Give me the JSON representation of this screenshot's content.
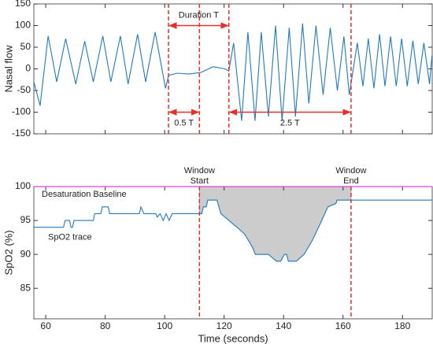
{
  "chart_data": [
    {
      "type": "line",
      "ylabel": "Nasal flow",
      "xlim": [
        56,
        190
      ],
      "ylim": [
        -150,
        150
      ],
      "xticks": [
        60,
        80,
        100,
        120,
        140,
        160,
        180
      ],
      "yticks": [
        -150,
        -100,
        -50,
        0,
        50,
        100,
        150
      ],
      "x": [
        56,
        58.1,
        60.8,
        63.7,
        66.7,
        70.1,
        73.1,
        76.0,
        79.2,
        81.9,
        85.1,
        87.7,
        90.9,
        93.6,
        96.8,
        100.3,
        101.3,
        104.3,
        108.3,
        112.3,
        116.3,
        120.3,
        121.6,
        123.2,
        125.9,
        128.0,
        130.4,
        132.5,
        134.9,
        137.3,
        139.5,
        141.9,
        144.0,
        146.4,
        148.5,
        150.9,
        153.3,
        155.7,
        158.1,
        160.3,
        162.1,
        164.8,
        166.7,
        168.5,
        170.4,
        172.3,
        174.1,
        176.0,
        177.9,
        179.7,
        181.6,
        183.5,
        185.3,
        187.2,
        189.1,
        189.9
      ],
      "series": [
        {
          "color": "#1f7bbf",
          "values": [
            -30,
            -85,
            76,
            -30,
            70,
            -35,
            64,
            -30,
            76,
            -30,
            76,
            -35,
            80,
            -30,
            85,
            -45,
            -15,
            -10,
            -12,
            -8,
            5,
            0,
            -5,
            60,
            -120,
            85,
            -120,
            85,
            -110,
            100,
            -120,
            95,
            -110,
            105,
            -80,
            100,
            -60,
            95,
            -50,
            75,
            -60,
            60,
            -40,
            70,
            -45,
            80,
            -40,
            75,
            -40,
            70,
            -40,
            65,
            -35,
            60,
            -35,
            30
          ]
        }
      ],
      "vline_color": "#e8302a",
      "vlines": [
        {
          "x": 101.3
        },
        {
          "x": 111.7
        },
        {
          "x": 121.6
        },
        {
          "x": 162.7
        }
      ],
      "annotations": [
        {
          "text": "Duration T",
          "x": [
            101.3,
            121.6
          ],
          "y": 100
        },
        {
          "text": "0.5 T",
          "x": [
            101.3,
            111.7
          ],
          "y": -100
        },
        {
          "text": "2.5 T",
          "x": [
            121.6,
            162.7
          ],
          "y": -100
        }
      ]
    },
    {
      "type": "line",
      "ylabel": "SpO2 (%)",
      "xlabel": "Time (seconds)",
      "xlim": [
        56,
        190
      ],
      "ylim": [
        80.5,
        100
      ],
      "xticks": [
        60,
        80,
        100,
        120,
        140,
        160,
        180
      ],
      "yticks": [
        85,
        90,
        95,
        100
      ],
      "x": [
        56,
        66,
        66.5,
        68,
        68.5,
        69,
        69.5,
        76,
        76.5,
        78.5,
        79,
        81,
        81.5,
        91.5,
        92,
        93,
        97,
        97.5,
        98.5,
        99.5,
        100.5,
        101.5,
        102.5,
        111.7,
        112.5,
        113,
        114,
        114.5,
        117.6,
        118.9,
        121.6,
        124.3,
        126.9,
        129.6,
        130.5,
        134.9,
        137.6,
        139,
        140.3,
        141,
        141.6,
        144.3,
        146.9,
        149.6,
        152.3,
        154.9,
        157.6,
        158,
        162.9,
        190
      ],
      "series": [
        {
          "name": "SpO2 trace",
          "color": "#1f7bbf",
          "values": [
            94,
            94,
            95,
            95,
            94,
            94,
            95,
            95,
            96,
            96,
            97,
            97,
            96,
            96,
            97,
            96,
            96,
            95.5,
            96,
            95,
            96,
            95,
            96,
            96,
            96,
            97,
            97,
            98,
            98,
            96,
            95,
            94,
            93,
            91,
            90,
            90,
            89,
            89,
            90,
            90,
            89,
            89,
            90,
            92,
            94.5,
            97,
            97.5,
            98,
            98,
            98
          ]
        }
      ],
      "hlines": [
        {
          "name": "Desaturation Baseline",
          "value": 100,
          "color": "#e040e0"
        }
      ],
      "shade_color": "#cccccc",
      "vline_color": "#e8302a",
      "vlines": [
        {
          "x": 111.7,
          "label": "Window Start"
        },
        {
          "x": 162.7,
          "label": "Window End"
        }
      ]
    }
  ]
}
